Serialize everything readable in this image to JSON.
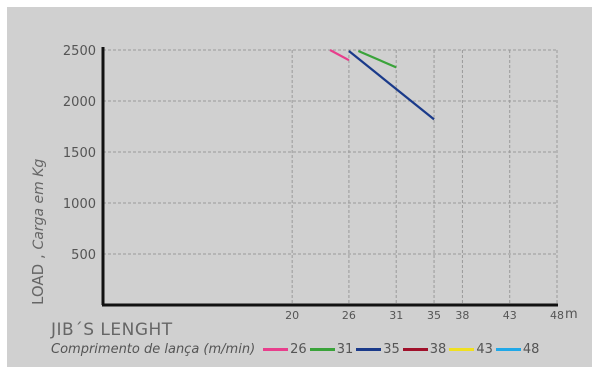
{
  "chart_data": {
    "type": "line",
    "ylabel": "LOAD",
    "ylabel_sub": "Carga em Kg",
    "xlabel": "JIB´S LENGHT",
    "xlabel_sub": "Comprimento de lança (m/min)",
    "x_unit": "m",
    "xticks": [
      20,
      26,
      31,
      35,
      38,
      43,
      48
    ],
    "yticks": [
      500,
      1000,
      1500,
      2000,
      2500
    ],
    "xlim": [
      0,
      48
    ],
    "ylim": [
      0,
      2500
    ],
    "grid": true,
    "series": [
      {
        "name": "26",
        "color": "#e83e8c",
        "x": [
          24,
          26
        ],
        "y": [
          2500,
          2400
        ]
      },
      {
        "name": "31",
        "color": "#3aa33a",
        "x": [
          27,
          31
        ],
        "y": [
          2490,
          2330
        ]
      },
      {
        "name": "35",
        "color": "#1a3a8a",
        "x": [
          26,
          35
        ],
        "y": [
          2490,
          1820
        ]
      },
      {
        "name": "38",
        "color": "#a0102a",
        "x": [],
        "y": []
      },
      {
        "name": "43",
        "color": "#f0e020",
        "x": [],
        "y": []
      },
      {
        "name": "48",
        "color": "#20a8e8",
        "x": [],
        "y": []
      }
    ]
  }
}
